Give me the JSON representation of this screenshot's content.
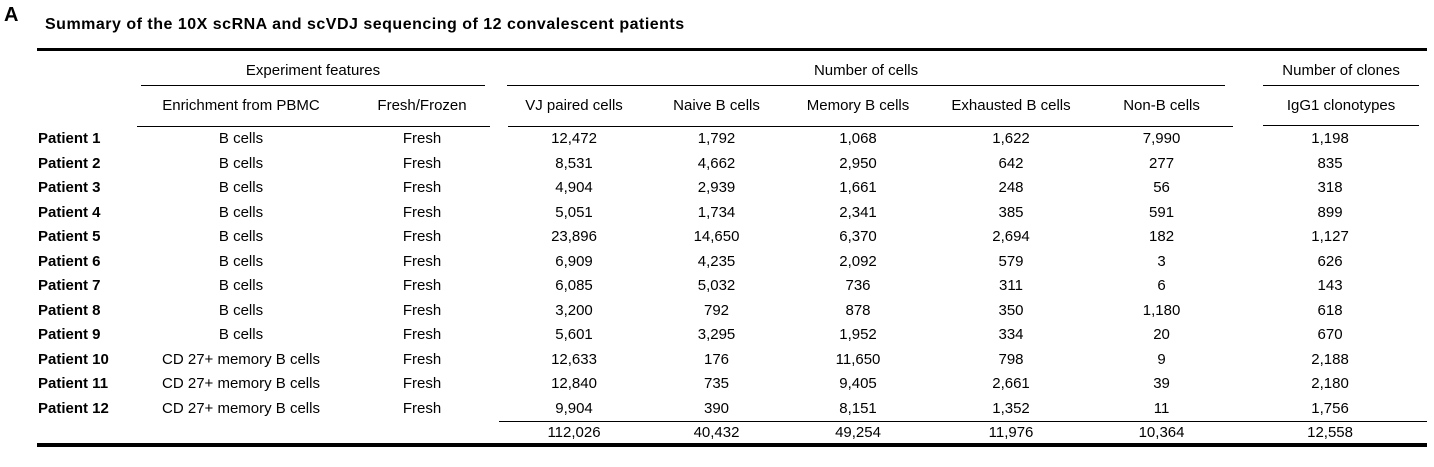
{
  "panel_label": "A",
  "table": {
    "title": "Summary of the 10X scRNA and scVDJ sequencing of 12 convalescent patients",
    "column_groups": [
      {
        "label": "Experiment features",
        "span": 2
      },
      {
        "label": "Number of cells",
        "span": 5
      },
      {
        "label": "Number of clones",
        "span": 1
      }
    ],
    "columns": [
      "",
      "Enrichment from PBMC",
      "Fresh/Frozen",
      "VJ paired cells",
      "Naive B cells",
      "Memory B cells",
      "Exhausted B cells",
      "Non-B cells",
      "IgG1 clonotypes"
    ],
    "rows": [
      {
        "patient": "Patient 1",
        "enrichment": "B cells",
        "fresh_frozen": "Fresh",
        "vj_paired": "12,472",
        "naive": "1,792",
        "memory": "1,068",
        "exhausted": "1,622",
        "non_b": "7,990",
        "igg1": "1,198"
      },
      {
        "patient": "Patient 2",
        "enrichment": "B cells",
        "fresh_frozen": "Fresh",
        "vj_paired": "8,531",
        "naive": "4,662",
        "memory": "2,950",
        "exhausted": "642",
        "non_b": "277",
        "igg1": "835"
      },
      {
        "patient": "Patient 3",
        "enrichment": "B cells",
        "fresh_frozen": "Fresh",
        "vj_paired": "4,904",
        "naive": "2,939",
        "memory": "1,661",
        "exhausted": "248",
        "non_b": "56",
        "igg1": "318"
      },
      {
        "patient": "Patient 4",
        "enrichment": "B cells",
        "fresh_frozen": "Fresh",
        "vj_paired": "5,051",
        "naive": "1,734",
        "memory": "2,341",
        "exhausted": "385",
        "non_b": "591",
        "igg1": "899"
      },
      {
        "patient": "Patient 5",
        "enrichment": "B cells",
        "fresh_frozen": "Fresh",
        "vj_paired": "23,896",
        "naive": "14,650",
        "memory": "6,370",
        "exhausted": "2,694",
        "non_b": "182",
        "igg1": "1,127"
      },
      {
        "patient": "Patient 6",
        "enrichment": "B cells",
        "fresh_frozen": "Fresh",
        "vj_paired": "6,909",
        "naive": "4,235",
        "memory": "2,092",
        "exhausted": "579",
        "non_b": "3",
        "igg1": "626"
      },
      {
        "patient": "Patient 7",
        "enrichment": "B cells",
        "fresh_frozen": "Fresh",
        "vj_paired": "6,085",
        "naive": "5,032",
        "memory": "736",
        "exhausted": "311",
        "non_b": "6",
        "igg1": "143"
      },
      {
        "patient": "Patient 8",
        "enrichment": "B cells",
        "fresh_frozen": "Fresh",
        "vj_paired": "3,200",
        "naive": "792",
        "memory": "878",
        "exhausted": "350",
        "non_b": "1,180",
        "igg1": "618"
      },
      {
        "patient": "Patient 9",
        "enrichment": "B cells",
        "fresh_frozen": "Fresh",
        "vj_paired": "5,601",
        "naive": "3,295",
        "memory": "1,952",
        "exhausted": "334",
        "non_b": "20",
        "igg1": "670"
      },
      {
        "patient": "Patient 10",
        "enrichment": "CD 27+ memory B cells",
        "fresh_frozen": "Fresh",
        "vj_paired": "12,633",
        "naive": "176",
        "memory": "11,650",
        "exhausted": "798",
        "non_b": "9",
        "igg1": "2,188"
      },
      {
        "patient": "Patient 11",
        "enrichment": "CD 27+ memory B cells",
        "fresh_frozen": "Fresh",
        "vj_paired": "12,840",
        "naive": "735",
        "memory": "9,405",
        "exhausted": "2,661",
        "non_b": "39",
        "igg1": "2,180"
      },
      {
        "patient": "Patient 12",
        "enrichment": "CD 27+ memory B cells",
        "fresh_frozen": "Fresh",
        "vj_paired": "9,904",
        "naive": "390",
        "memory": "8,151",
        "exhausted": "1,352",
        "non_b": "11",
        "igg1": "1,756"
      }
    ],
    "totals": {
      "vj_paired": "112,026",
      "naive": "40,432",
      "memory": "49,254",
      "exhausted": "11,976",
      "non_b": "10,364",
      "igg1": "12,558"
    }
  }
}
